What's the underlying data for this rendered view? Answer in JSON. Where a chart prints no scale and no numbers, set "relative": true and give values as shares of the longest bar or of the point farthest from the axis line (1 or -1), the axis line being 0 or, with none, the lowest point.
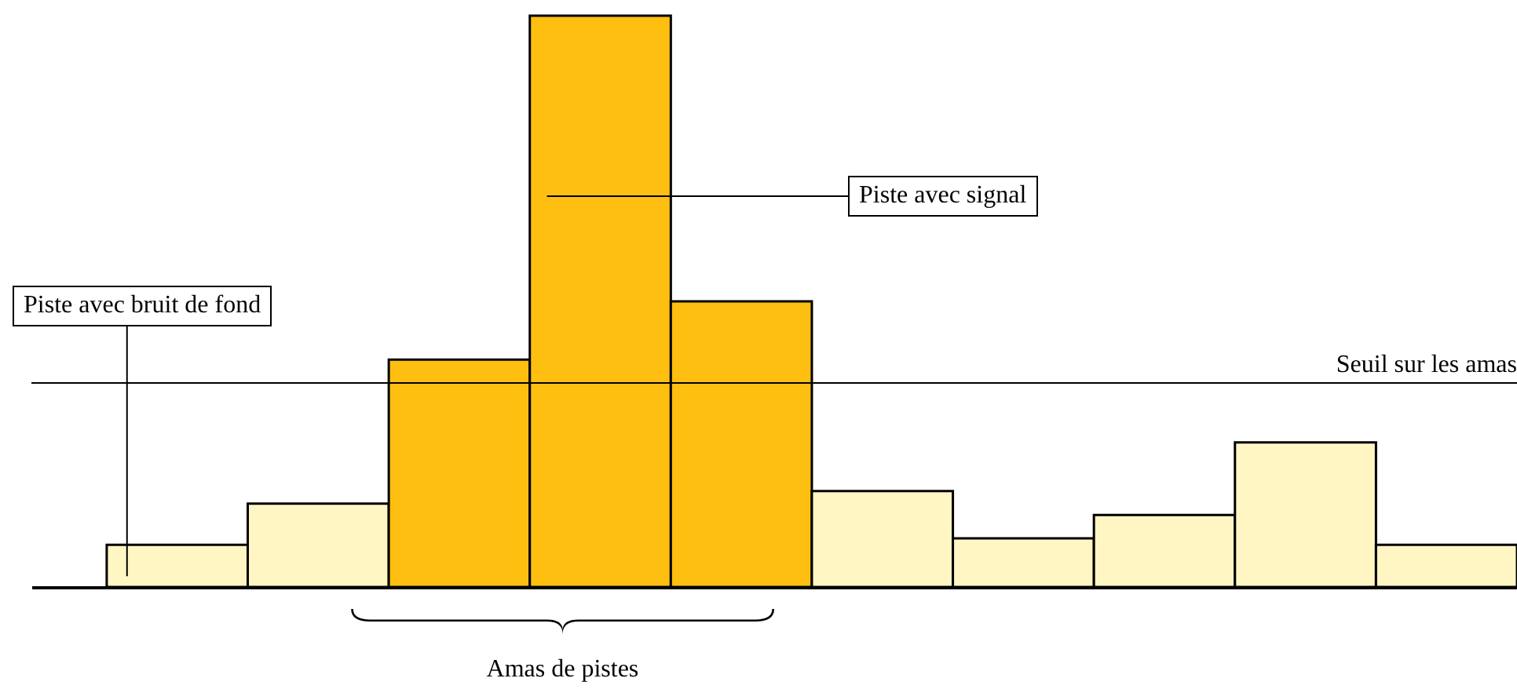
{
  "chart_data": {
    "type": "bar",
    "relative": true,
    "categories": [
      null,
      null,
      null,
      null,
      null,
      null,
      null,
      null,
      null,
      null
    ],
    "values": [
      0.074,
      0.146,
      0.398,
      1,
      0.5,
      0.168,
      0.085,
      0.126,
      0.253,
      0.074
    ],
    "colors": [
      "#fff6c4",
      "#fff6c4",
      "#ffbf10",
      "#ffbf10",
      "#ffbf10",
      "#fff6c4",
      "#fff6c4",
      "#fff6c4",
      "#fff6c4",
      "#fff6c4"
    ],
    "ref_lines": [
      {
        "axis": "y",
        "value": 0.357,
        "label": "Seuil sur les amas",
        "color": "#000000"
      }
    ],
    "annotations": [
      "Piste avec bruit de fond",
      "Piste avec signal",
      "Amas de pistes"
    ],
    "line_style": "solid"
  }
}
